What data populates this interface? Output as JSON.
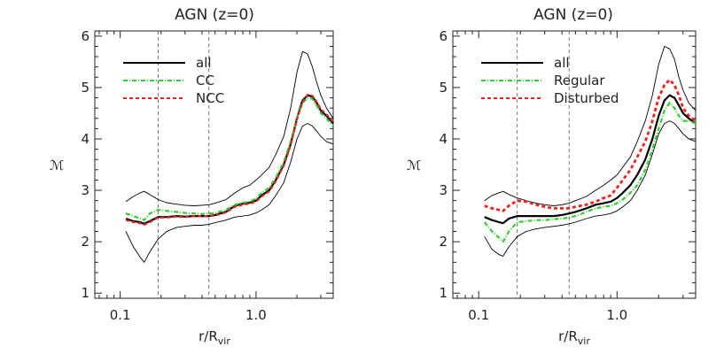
{
  "chart_data": [
    {
      "type": "line",
      "title": "AGN (z=0)",
      "xlabel": "r/R",
      "xlabel_sub": "vir",
      "ylabel": "ℳ",
      "xscale": "log",
      "xlim": [
        0.065,
        3.7
      ],
      "ylim": [
        0.9,
        6.1
      ],
      "x_ticks": [
        {
          "v": 0.1,
          "label": "0.1"
        },
        {
          "v": 1.0,
          "label": "1.0"
        }
      ],
      "y_ticks": [
        {
          "v": 1,
          "label": "1"
        },
        {
          "v": 2,
          "label": "2"
        },
        {
          "v": 3,
          "label": "3"
        },
        {
          "v": 4,
          "label": "4"
        },
        {
          "v": 5,
          "label": "5"
        },
        {
          "v": 6,
          "label": "6"
        }
      ],
      "vlines": [
        0.19,
        0.45
      ],
      "x": [
        0.11,
        0.125,
        0.14,
        0.15,
        0.165,
        0.19,
        0.22,
        0.26,
        0.3,
        0.35,
        0.4,
        0.45,
        0.5,
        0.6,
        0.7,
        0.8,
        0.9,
        1.0,
        1.1,
        1.25,
        1.4,
        1.6,
        1.8,
        2.0,
        2.2,
        2.4,
        2.6,
        2.8,
        3.0,
        3.3,
        3.7
      ],
      "series": [
        {
          "name": "all",
          "color": "#000000",
          "dash": "solid",
          "width": 2.2,
          "values": [
            2.45,
            2.4,
            2.38,
            2.35,
            2.4,
            2.48,
            2.48,
            2.5,
            2.49,
            2.5,
            2.5,
            2.5,
            2.52,
            2.58,
            2.7,
            2.74,
            2.76,
            2.8,
            2.9,
            3.0,
            3.2,
            3.5,
            3.9,
            4.4,
            4.75,
            4.85,
            4.82,
            4.7,
            4.55,
            4.45,
            4.3
          ]
        },
        {
          "name": "CC",
          "color": "#33cc33",
          "dash": "5,2,1,2",
          "width": 2.2,
          "values": [
            2.55,
            2.5,
            2.45,
            2.42,
            2.55,
            2.62,
            2.6,
            2.58,
            2.56,
            2.55,
            2.54,
            2.55,
            2.56,
            2.62,
            2.72,
            2.76,
            2.78,
            2.84,
            2.95,
            3.05,
            3.25,
            3.55,
            3.95,
            4.4,
            4.7,
            4.8,
            4.78,
            4.65,
            4.5,
            4.4,
            4.25
          ]
        },
        {
          "name": "NCC",
          "color": "#ee2222",
          "dash": "4,3",
          "width": 2.2,
          "values": [
            2.42,
            2.38,
            2.36,
            2.33,
            2.38,
            2.47,
            2.47,
            2.49,
            2.48,
            2.5,
            2.5,
            2.5,
            2.51,
            2.57,
            2.68,
            2.72,
            2.74,
            2.78,
            2.88,
            2.98,
            3.18,
            3.48,
            3.88,
            4.38,
            4.72,
            4.86,
            4.84,
            4.72,
            4.58,
            4.48,
            4.33
          ]
        },
        {
          "name": "",
          "color": "#000000",
          "dash": "solid",
          "width": 0.9,
          "values": [
            2.78,
            2.88,
            2.95,
            2.98,
            2.92,
            2.82,
            2.76,
            2.73,
            2.71,
            2.7,
            2.71,
            2.72,
            2.75,
            2.82,
            2.95,
            3.05,
            3.1,
            3.2,
            3.3,
            3.45,
            3.7,
            4.05,
            4.6,
            5.3,
            5.7,
            5.65,
            5.4,
            5.1,
            4.85,
            4.6,
            4.4
          ]
        },
        {
          "name": "",
          "color": "#000000",
          "dash": "solid",
          "width": 0.9,
          "values": [
            2.2,
            1.9,
            1.7,
            1.6,
            1.8,
            2.05,
            2.2,
            2.28,
            2.3,
            2.32,
            2.32,
            2.34,
            2.37,
            2.42,
            2.48,
            2.5,
            2.52,
            2.56,
            2.62,
            2.72,
            2.9,
            3.15,
            3.55,
            4.0,
            4.25,
            4.3,
            4.25,
            4.15,
            4.05,
            3.95,
            3.9
          ]
        }
      ],
      "legend": {
        "placement": "top-left",
        "entries": [
          "all",
          "CC",
          "NCC"
        ]
      }
    },
    {
      "type": "line",
      "title": "AGN (z=0)",
      "xlabel": "r/R",
      "xlabel_sub": "vir",
      "ylabel": "ℳ",
      "xscale": "log",
      "xlim": [
        0.065,
        3.7
      ],
      "ylim": [
        0.9,
        6.1
      ],
      "x_ticks": [
        {
          "v": 0.1,
          "label": "0.1"
        },
        {
          "v": 1.0,
          "label": "1.0"
        }
      ],
      "y_ticks": [
        {
          "v": 1,
          "label": "1"
        },
        {
          "v": 2,
          "label": "2"
        },
        {
          "v": 3,
          "label": "3"
        },
        {
          "v": 4,
          "label": "4"
        },
        {
          "v": 5,
          "label": "5"
        },
        {
          "v": 6,
          "label": "6"
        }
      ],
      "vlines": [
        0.19,
        0.45
      ],
      "x": [
        0.11,
        0.125,
        0.14,
        0.15,
        0.165,
        0.19,
        0.22,
        0.26,
        0.3,
        0.35,
        0.4,
        0.45,
        0.5,
        0.6,
        0.7,
        0.8,
        0.9,
        1.0,
        1.1,
        1.25,
        1.4,
        1.6,
        1.8,
        2.0,
        2.2,
        2.4,
        2.6,
        2.8,
        3.0,
        3.3,
        3.7
      ],
      "series": [
        {
          "name": "all",
          "color": "#000000",
          "dash": "solid",
          "width": 2.2,
          "values": [
            2.48,
            2.42,
            2.38,
            2.36,
            2.45,
            2.5,
            2.5,
            2.5,
            2.5,
            2.5,
            2.52,
            2.55,
            2.58,
            2.65,
            2.72,
            2.75,
            2.78,
            2.85,
            2.95,
            3.1,
            3.3,
            3.6,
            4.0,
            4.45,
            4.75,
            4.85,
            4.8,
            4.65,
            4.5,
            4.4,
            4.3
          ]
        },
        {
          "name": "Regular",
          "color": "#33cc33",
          "dash": "5,2,1,2",
          "width": 2.2,
          "values": [
            2.38,
            2.2,
            2.08,
            2.0,
            2.2,
            2.38,
            2.4,
            2.42,
            2.42,
            2.44,
            2.45,
            2.47,
            2.5,
            2.58,
            2.65,
            2.68,
            2.7,
            2.75,
            2.82,
            2.95,
            3.1,
            3.4,
            3.8,
            4.2,
            4.55,
            4.7,
            4.6,
            4.45,
            4.35,
            4.35,
            4.3
          ]
        },
        {
          "name": "Disturbed",
          "color": "#ee2222",
          "dash": "4,3",
          "width": 2.8,
          "values": [
            2.7,
            2.65,
            2.62,
            2.6,
            2.7,
            2.8,
            2.78,
            2.72,
            2.68,
            2.65,
            2.65,
            2.65,
            2.68,
            2.72,
            2.78,
            2.85,
            2.9,
            3.05,
            3.2,
            3.4,
            3.65,
            3.95,
            4.35,
            4.8,
            5.05,
            5.15,
            5.05,
            4.85,
            4.6,
            4.45,
            4.35
          ]
        },
        {
          "name": "",
          "color": "#000000",
          "dash": "solid",
          "width": 0.9,
          "values": [
            2.8,
            2.9,
            2.95,
            2.98,
            2.92,
            2.85,
            2.8,
            2.75,
            2.72,
            2.7,
            2.72,
            2.75,
            2.8,
            2.88,
            3.0,
            3.1,
            3.2,
            3.3,
            3.45,
            3.65,
            3.95,
            4.35,
            4.85,
            5.45,
            5.8,
            5.75,
            5.55,
            5.2,
            4.95,
            4.7,
            4.55
          ]
        },
        {
          "name": "",
          "color": "#000000",
          "dash": "solid",
          "width": 0.9,
          "values": [
            2.1,
            1.85,
            1.75,
            1.72,
            1.9,
            2.1,
            2.2,
            2.25,
            2.28,
            2.3,
            2.32,
            2.35,
            2.38,
            2.45,
            2.5,
            2.52,
            2.55,
            2.6,
            2.68,
            2.8,
            3.0,
            3.3,
            3.7,
            4.1,
            4.3,
            4.35,
            4.3,
            4.2,
            4.1,
            4.0,
            3.95
          ]
        }
      ],
      "legend": {
        "placement": "top-left",
        "entries": [
          "all",
          "Regular",
          "Disturbed"
        ]
      }
    }
  ]
}
